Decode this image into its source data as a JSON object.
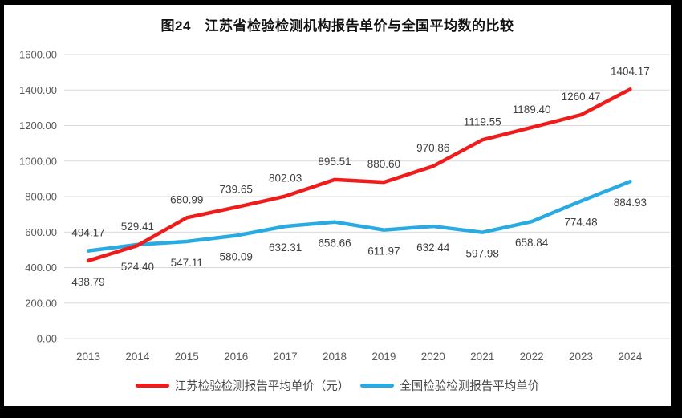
{
  "chart_data": {
    "type": "line",
    "title": "图24　江苏省检验检测机构报告单价与全国平均数的比较",
    "categories": [
      "2013",
      "2014",
      "2015",
      "2016",
      "2017",
      "2018",
      "2019",
      "2020",
      "2021",
      "2022",
      "2023",
      "2024"
    ],
    "series": [
      {
        "name": "江苏检验检测报告平均单价（元）",
        "color": "#ee1c1b",
        "values": [
          438.79,
          524.4,
          680.99,
          739.65,
          802.03,
          895.51,
          880.6,
          970.86,
          1119.55,
          1189.4,
          1260.47,
          1404.17
        ]
      },
      {
        "name": "全国检验检测报告平均单价",
        "color": "#29abe2",
        "values": [
          494.17,
          529.41,
          547.11,
          580.09,
          632.31,
          656.66,
          611.97,
          632.44,
          597.98,
          658.84,
          774.48,
          884.93
        ]
      }
    ],
    "xlabel": "",
    "ylabel": "",
    "ylim": [
      0,
      1600
    ],
    "y_tick_step": 200,
    "y_tick_decimals": 2,
    "grid": true,
    "data_labels": true,
    "legend_position": "bottom",
    "colors": {
      "background": "#ffffff",
      "frame": "#000000",
      "gridline": "#d9d9d9",
      "tick_label": "#595959",
      "data_label": "#404040",
      "legend_text": "#4a4a4a",
      "title_text": "#111111"
    }
  }
}
